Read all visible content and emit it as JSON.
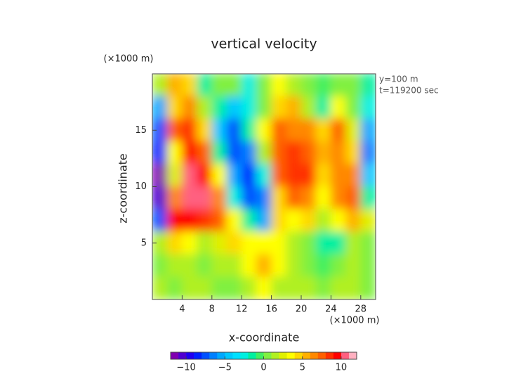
{
  "chart_data": {
    "type": "heatmap",
    "title": "vertical velocity",
    "xlabel": "x-coordinate",
    "ylabel": "z-coordinate",
    "x_unit": "(×1000 m)",
    "y_unit": "(×1000 m)",
    "annotations": [
      "y=100 m",
      "t=119200 sec"
    ],
    "xlim": [
      0,
      30
    ],
    "ylim": [
      0,
      20
    ],
    "xticks": [
      4,
      8,
      12,
      16,
      20,
      24,
      28
    ],
    "yticks": [
      5,
      10,
      15
    ],
    "x": [
      1,
      3,
      5,
      7,
      9,
      11,
      13,
      15,
      17,
      19,
      21,
      23,
      25,
      27,
      29
    ],
    "y": [
      19,
      17,
      15,
      13,
      11,
      9,
      7,
      5,
      3,
      1
    ],
    "z": [
      [
        1,
        5,
        4,
        -2,
        0,
        0,
        -3,
        0,
        3,
        1,
        0,
        -1,
        0,
        0,
        -2
      ],
      [
        -6,
        4,
        6,
        1,
        -2,
        -5,
        -3,
        0,
        4,
        5,
        1,
        -2,
        3,
        0,
        -3
      ],
      [
        -8,
        7,
        8,
        4,
        -5,
        -8,
        -2,
        3,
        7,
        6,
        6,
        4,
        7,
        2,
        -6
      ],
      [
        -9,
        3,
        9,
        7,
        -2,
        -8,
        -7,
        1,
        7,
        8,
        7,
        5,
        6,
        4,
        -7
      ],
      [
        -12,
        2,
        10,
        9,
        3,
        -6,
        -9,
        -3,
        7,
        8,
        8,
        4,
        6,
        6,
        -5
      ],
      [
        -11,
        6,
        10,
        10,
        6,
        -3,
        -8,
        -7,
        4,
        7,
        6,
        3,
        6,
        7,
        -2
      ],
      [
        -8,
        9,
        9,
        8,
        7,
        3,
        -2,
        -6,
        4,
        3,
        4,
        1,
        3,
        5,
        2
      ],
      [
        1,
        4,
        3,
        1,
        2,
        4,
        3,
        3,
        3,
        1,
        0,
        -2,
        -2,
        1,
        0
      ],
      [
        0,
        1,
        1,
        0,
        1,
        1,
        3,
        5,
        3,
        1,
        0,
        -1,
        0,
        1,
        0
      ],
      [
        1,
        0,
        1,
        1,
        0,
        0,
        1,
        3,
        1,
        1,
        1,
        0,
        1,
        1,
        0
      ]
    ],
    "clim": [
      -12,
      12
    ],
    "colors": [
      "#8000b0",
      "#5000d0",
      "#2000f0",
      "#0020ff",
      "#0050ff",
      "#0080ff",
      "#00a8ff",
      "#00c8ff",
      "#00e0ff",
      "#00f0e0",
      "#00f0a0",
      "#40f060",
      "#80f040",
      "#b0f020",
      "#e0f000",
      "#ffff00",
      "#ffd800",
      "#ffb000",
      "#ff8800",
      "#ff6000",
      "#ff3000",
      "#ff0000",
      "#ff6080",
      "#ffb0c0"
    ],
    "cticks": [
      {
        "value": -10,
        "label": "−10"
      },
      {
        "value": -5,
        "label": "−5"
      },
      0,
      5,
      10
    ]
  }
}
